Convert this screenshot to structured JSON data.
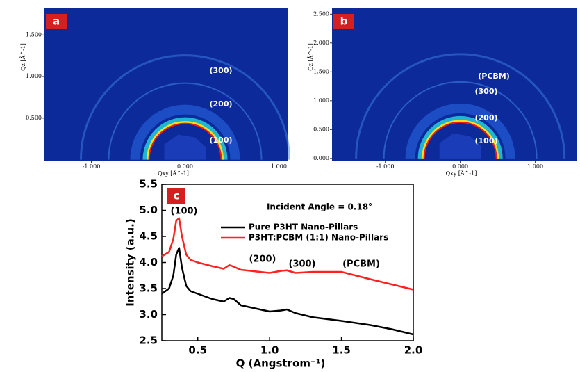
{
  "chart_data": [
    {
      "type": "image",
      "label": "a",
      "xlabel": "Qxy [Å^-1]",
      "ylabel": "Qz [Å^-1]",
      "xlim": [
        -1.5,
        1.1
      ],
      "ylim": [
        -0.02,
        1.82
      ],
      "xticks": [
        {
          "value": -1,
          "label": "-1.000"
        },
        {
          "value": 0,
          "label": "0.000"
        },
        {
          "value": 1,
          "label": "1.000"
        }
      ],
      "yticks": [
        {
          "value": 0.5,
          "label": "0.500"
        },
        {
          "value": 1,
          "label": "1.000"
        },
        {
          "value": 1.5,
          "label": "1.500"
        }
      ],
      "annotations": [
        "(300)",
        "(200)",
        "(100)"
      ]
    },
    {
      "type": "image",
      "label": "b",
      "xlabel": "Qxy [Å^-1]",
      "ylabel": "Qz [Å^-1]",
      "xlim": [
        -1.71,
        1.55
      ],
      "ylim": [
        -0.05,
        2.6
      ],
      "xticks": [
        {
          "value": -1,
          "label": "-1.000"
        },
        {
          "value": 0,
          "label": "0.000"
        },
        {
          "value": 1,
          "label": "1.000"
        }
      ],
      "yticks": [
        {
          "value": 0,
          "label": "0.000"
        },
        {
          "value": 0.5,
          "label": "0.500"
        },
        {
          "value": 1,
          "label": "1.000"
        },
        {
          "value": 1.5,
          "label": "1.500"
        },
        {
          "value": 2,
          "label": "2.000"
        },
        {
          "value": 2.5,
          "label": "2.500"
        }
      ],
      "annotations": [
        "(PCBM)",
        "(300)",
        "(200)",
        "(100)"
      ]
    },
    {
      "type": "line",
      "label": "c",
      "xlabel": "Q (Angstrom⁻¹)",
      "ylabel": "Intensity (a.u.)",
      "xlim": [
        0.25,
        2.0
      ],
      "ylim": [
        2.5,
        5.5
      ],
      "xticks": [
        0.5,
        {
          "value": 1,
          "label": "1.0"
        },
        1.5,
        {
          "value": 2,
          "label": "2.0"
        }
      ],
      "yticks": [
        2.5,
        {
          "value": 3,
          "label": "3.0"
        },
        3.5,
        {
          "value": 4,
          "label": "4.0"
        },
        4.5,
        {
          "value": 5,
          "label": "5.0"
        },
        5.5
      ],
      "x": [
        0.25,
        0.3,
        0.33,
        0.35,
        0.37,
        0.39,
        0.42,
        0.45,
        0.5,
        0.6,
        0.68,
        0.72,
        0.75,
        0.8,
        0.9,
        1.0,
        1.08,
        1.12,
        1.18,
        1.3,
        1.5,
        1.7,
        1.85,
        2.0
      ],
      "series": [
        {
          "name": "Pure P3HT Nano-Pillars",
          "color": "#000000",
          "values": [
            3.4,
            3.5,
            3.75,
            4.15,
            4.28,
            3.9,
            3.55,
            3.45,
            3.4,
            3.3,
            3.25,
            3.32,
            3.3,
            3.18,
            3.12,
            3.06,
            3.08,
            3.1,
            3.03,
            2.95,
            2.88,
            2.8,
            2.72,
            2.62
          ]
        },
        {
          "name": "P3HT:PCBM (1:1) Nano-Pillars",
          "color": "#ff2020",
          "values": [
            4.12,
            4.2,
            4.45,
            4.8,
            4.85,
            4.5,
            4.15,
            4.05,
            4.0,
            3.93,
            3.88,
            3.95,
            3.92,
            3.86,
            3.83,
            3.8,
            3.84,
            3.85,
            3.8,
            3.82,
            3.82,
            3.68,
            3.58,
            3.48
          ]
        }
      ],
      "annotations": [
        "Incident Angle = 0.18°",
        "(100)",
        "(200)",
        "(300)",
        "(PCBM)"
      ]
    }
  ]
}
